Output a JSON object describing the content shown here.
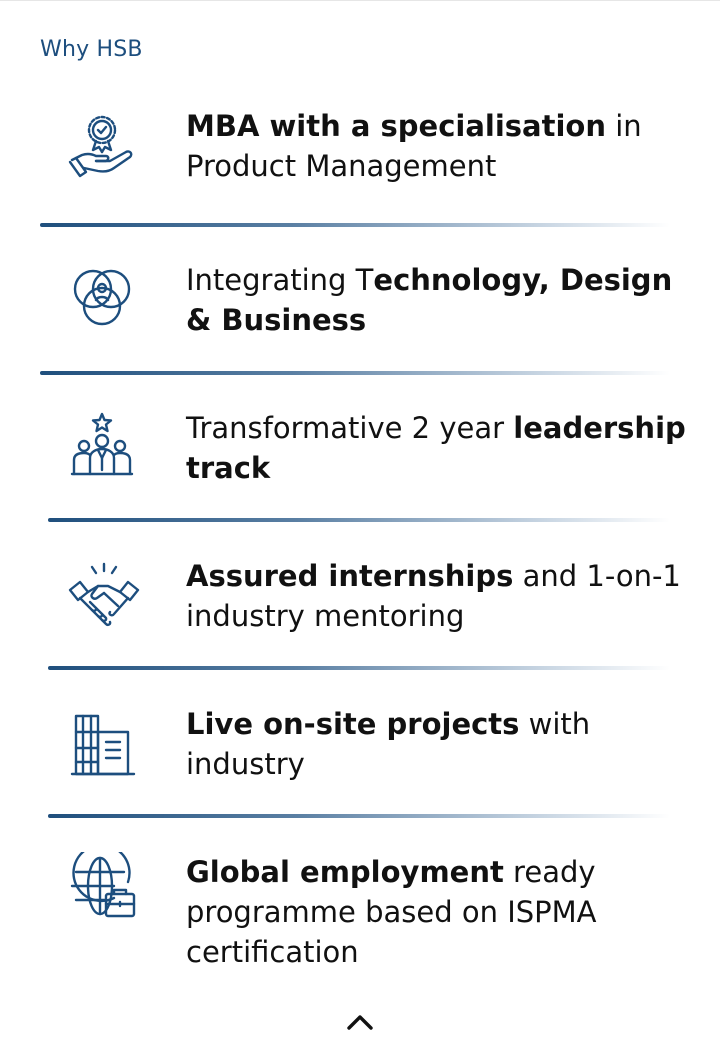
{
  "section": {
    "label": "Why HSB"
  },
  "features": [
    {
      "icon": "award-hand-icon",
      "bold_first": "MBA with a specialisation",
      "rest": " in Product Management"
    },
    {
      "icon": "venn-circles-icon",
      "plain_first": "Integrating T",
      "bold_rest": "echnology, Design & Business"
    },
    {
      "icon": "team-leader-icon",
      "plain_first": "Transformative 2 year ",
      "bold_rest": "leadership track"
    },
    {
      "icon": "handshake-icon",
      "bold_first": "Assured internships",
      "rest": " and 1-on-1 industry mentoring"
    },
    {
      "icon": "buildings-icon",
      "bold_first": "Live on-site projects",
      "rest": " with industry"
    },
    {
      "icon": "globe-briefcase-icon",
      "bold_first": "Global employment",
      "rest": " ready programme based on ISPMA certification"
    }
  ],
  "colors": {
    "accent": "#1d4e7e",
    "text": "#111111",
    "divider_start": "#1f4f7d"
  },
  "scroll_top": {
    "icon": "chevron-up-icon"
  }
}
